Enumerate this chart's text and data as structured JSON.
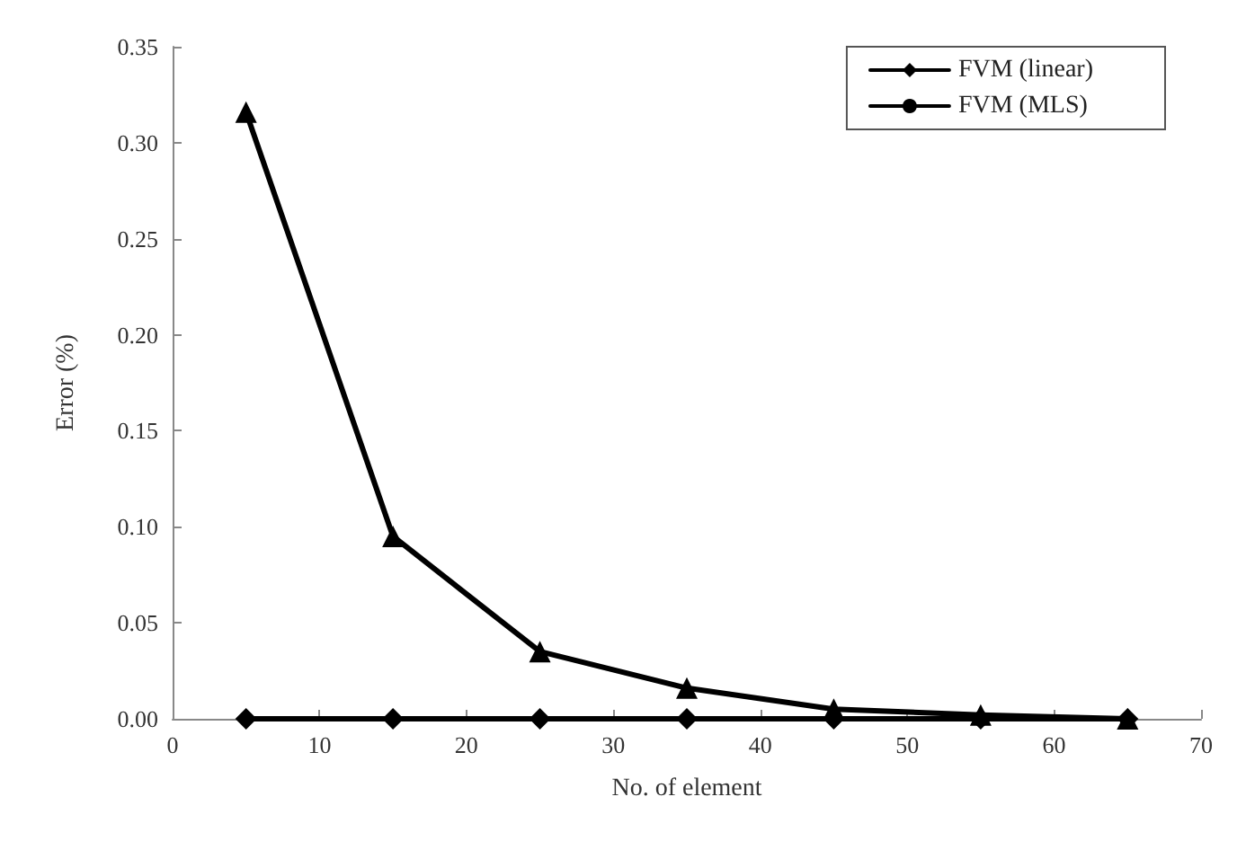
{
  "chart_data": {
    "type": "line",
    "xlabel": "No. of element",
    "ylabel": "Error (%)",
    "x": [
      5,
      15,
      25,
      35,
      45,
      55,
      65
    ],
    "series": [
      {
        "name": "FVM (linear)",
        "color": "#000000",
        "marker": "diamond",
        "values": [
          0,
          0,
          0,
          0,
          0,
          0,
          0
        ]
      },
      {
        "name": "FVM (MLS)",
        "color": "#000000",
        "marker": "circle",
        "values": [
          null,
          null,
          null,
          null,
          null,
          null,
          null
        ]
      },
      {
        "color": "#000000",
        "marker": "triangle",
        "values": [
          0.316,
          0.095,
          0.035,
          0.016,
          0.005,
          0.002,
          0
        ]
      }
    ],
    "xlim": [
      0,
      70
    ],
    "xticks": [
      0,
      10,
      20,
      30,
      40,
      50,
      60,
      70
    ],
    "ylim": [
      0,
      0.35
    ],
    "yticks": [
      {
        "value": 0,
        "label": "0.00"
      },
      0.05,
      {
        "value": 0.1,
        "label": "0.10"
      },
      0.15,
      {
        "value": 0.2,
        "label": "0.20"
      },
      0.25,
      {
        "value": 0.3,
        "label": "0.30"
      },
      0.35
    ],
    "legend": "top right",
    "grid": false,
    "line_style": "solid"
  }
}
